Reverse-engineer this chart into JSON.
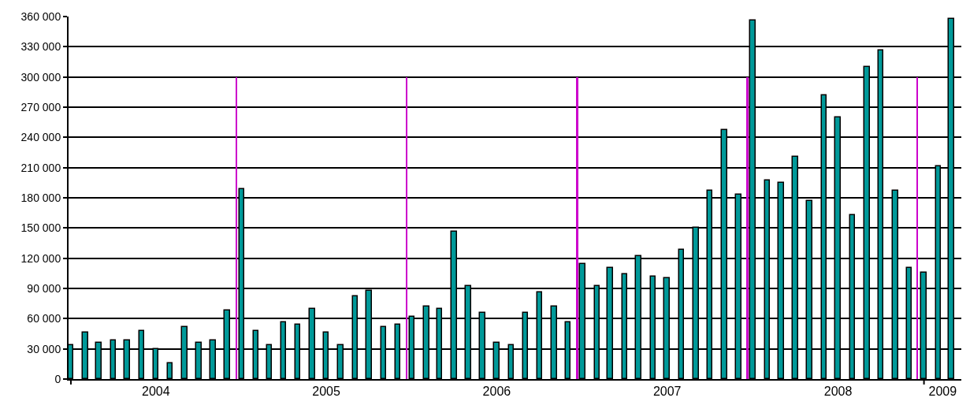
{
  "chart_data": {
    "type": "bar",
    "series": [
      {
        "color": "#009999",
        "x": [
          "2004-01",
          "2004-02",
          "2004-03",
          "2004-04",
          "2004-05",
          "2004-06",
          "2004-07",
          "2004-08",
          "2004-09",
          "2004-10",
          "2004-11",
          "2004-12",
          "2005-01",
          "2005-02",
          "2005-03",
          "2005-04",
          "2005-05",
          "2005-06",
          "2005-07",
          "2005-08",
          "2005-09",
          "2005-10",
          "2005-11",
          "2005-12",
          "2006-01",
          "2006-02",
          "2006-03",
          "2006-04",
          "2006-05",
          "2006-06",
          "2006-07",
          "2006-08",
          "2006-09",
          "2006-10",
          "2006-11",
          "2006-12",
          "2007-01",
          "2007-02",
          "2007-03",
          "2007-04",
          "2007-05",
          "2007-06",
          "2007-07",
          "2007-08",
          "2007-09",
          "2007-10",
          "2007-11",
          "2007-12",
          "2008-01",
          "2008-02",
          "2008-03",
          "2008-04",
          "2008-05",
          "2008-06",
          "2008-07",
          "2008-08",
          "2008-09",
          "2008-10",
          "2008-11",
          "2008-12",
          "2009-01",
          "2009-02",
          "2009-03"
        ],
        "values": [
          34000,
          46000,
          36000,
          38000,
          38000,
          48000,
          30000,
          16000,
          52000,
          36000,
          38000,
          68000,
          189000,
          48000,
          34000,
          56000,
          54000,
          70000,
          46000,
          34000,
          82000,
          88000,
          52000,
          54000,
          62000,
          72000,
          70000,
          146000,
          92000,
          66000,
          36000,
          34000,
          66000,
          86000,
          72000,
          56000,
          114000,
          92000,
          110000,
          104000,
          122000,
          102000,
          100000,
          128000,
          150000,
          187000,
          247000,
          183000,
          356000,
          197000,
          195000,
          221000,
          177000,
          282000,
          260000,
          163000,
          310000,
          326000,
          187000,
          110000,
          106000,
          211000,
          358000
        ]
      },
      {
        "color": "#cc00cc",
        "x": [
          "2004-12-20",
          "2005-12-20",
          "2006-12-20",
          "2007-12-20",
          "2008-12-18"
        ],
        "values": [
          300000,
          300000,
          300000,
          300000,
          300000
        ]
      }
    ],
    "xlim": [
      "2003-12-27",
      "2009-03-22"
    ],
    "xticks": [
      {
        "value": "2004-01-01",
        "label": null
      },
      {
        "value": "2004-07-01",
        "label": "2004"
      },
      {
        "value": "2005-07-01",
        "label": "2005"
      },
      {
        "value": "2006-07-01",
        "label": "2006"
      },
      {
        "value": "2007-07-01",
        "label": "2007"
      },
      {
        "value": "2008-07-01",
        "label": "2008"
      },
      {
        "value": "2009-01-01",
        "label": null
      },
      {
        "value": "2009-02-10",
        "label": "2009"
      }
    ],
    "ylim": [
      0,
      360000
    ],
    "yticks": [
      {
        "value": 0,
        "label": "0"
      },
      {
        "value": 30000,
        "label": "30 000"
      },
      {
        "value": 60000,
        "label": "60 000"
      },
      {
        "value": 90000,
        "label": "90 000"
      },
      {
        "value": 120000,
        "label": "120 000"
      },
      {
        "value": 150000,
        "label": "150 000"
      },
      {
        "value": 180000,
        "label": "180 000"
      },
      {
        "value": 210000,
        "label": "210 000"
      },
      {
        "value": 240000,
        "label": "240 000"
      },
      {
        "value": 270000,
        "label": "270 000"
      },
      {
        "value": 300000,
        "label": "300 000"
      },
      {
        "value": 330000,
        "label": "330 000"
      },
      {
        "value": 360000,
        "label": "360 000"
      }
    ],
    "grid": "y"
  }
}
